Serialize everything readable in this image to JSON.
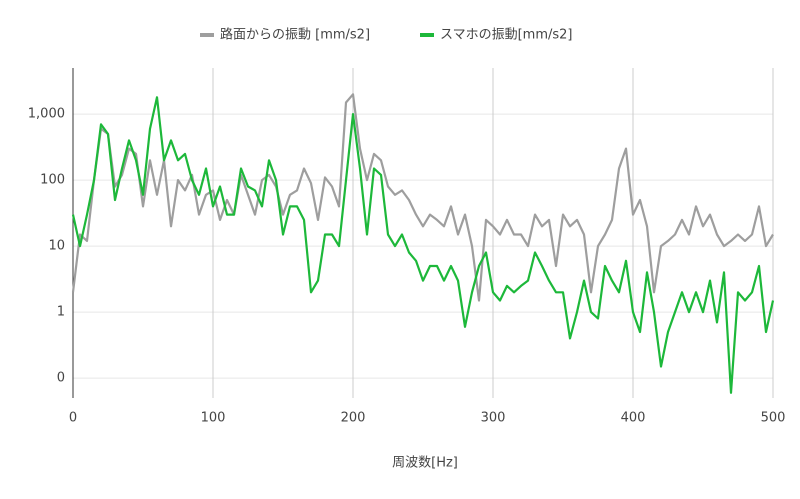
{
  "chart_data": {
    "type": "line",
    "xlabel": "周波数[Hz]",
    "x": [
      0,
      5,
      10,
      15,
      20,
      25,
      30,
      35,
      40,
      45,
      50,
      55,
      60,
      65,
      70,
      75,
      80,
      85,
      90,
      95,
      100,
      105,
      110,
      115,
      120,
      125,
      130,
      135,
      140,
      145,
      150,
      155,
      160,
      165,
      170,
      175,
      180,
      185,
      190,
      195,
      200,
      205,
      210,
      215,
      220,
      225,
      230,
      235,
      240,
      245,
      250,
      255,
      260,
      265,
      270,
      275,
      280,
      285,
      290,
      295,
      300,
      305,
      310,
      315,
      320,
      325,
      330,
      335,
      340,
      345,
      350,
      355,
      360,
      365,
      370,
      375,
      380,
      385,
      390,
      395,
      400,
      405,
      410,
      415,
      420,
      425,
      430,
      435,
      440,
      445,
      450,
      455,
      460,
      465,
      470,
      475,
      480,
      485,
      490,
      495,
      500
    ],
    "series": [
      {
        "name": "路面からの振動 [mm/s2]",
        "color": "#9e9e9e",
        "values": [
          2,
          15,
          12,
          100,
          600,
          500,
          80,
          120,
          300,
          250,
          40,
          200,
          60,
          200,
          20,
          100,
          70,
          120,
          30,
          60,
          70,
          25,
          50,
          30,
          120,
          60,
          30,
          100,
          120,
          80,
          30,
          60,
          70,
          150,
          90,
          25,
          110,
          80,
          40,
          1500,
          2000,
          300,
          100,
          250,
          200,
          80,
          60,
          70,
          50,
          30,
          20,
          30,
          25,
          20,
          40,
          15,
          30,
          10,
          1.5,
          25,
          20,
          15,
          25,
          15,
          15,
          10,
          30,
          20,
          25,
          5,
          30,
          20,
          25,
          15,
          2,
          10,
          15,
          25,
          150,
          300,
          30,
          50,
          20,
          2,
          10,
          12,
          15,
          25,
          15,
          40,
          20,
          30,
          15,
          10,
          12,
          15,
          12,
          15,
          40,
          10,
          15
        ]
      },
      {
        "name": "スマホの振動[mm/s2]",
        "color": "#1db83a",
        "values": [
          30,
          10,
          30,
          100,
          700,
          500,
          50,
          150,
          400,
          200,
          60,
          600,
          1800,
          200,
          400,
          200,
          250,
          100,
          60,
          150,
          40,
          80,
          30,
          30,
          150,
          80,
          70,
          40,
          200,
          100,
          15,
          40,
          40,
          25,
          2,
          3,
          15,
          15,
          10,
          100,
          1000,
          150,
          15,
          150,
          120,
          15,
          10,
          15,
          8,
          6,
          3,
          5,
          5,
          3,
          5,
          3,
          0.6,
          2,
          5,
          8,
          2,
          1.5,
          2.5,
          2,
          2.5,
          3,
          8,
          5,
          3,
          2,
          2,
          0.4,
          1,
          3,
          1,
          0.8,
          5,
          3,
          2,
          6,
          1,
          0.5,
          4,
          1,
          0.15,
          0.5,
          1,
          2,
          1,
          2,
          1,
          3,
          0.7,
          4,
          0.06,
          2,
          1.5,
          2,
          5,
          0.5,
          1.5
        ]
      }
    ],
    "xlim": [
      0,
      500
    ],
    "xticks": [
      0,
      100,
      200,
      300,
      400,
      500
    ],
    "ylim": [
      0.05,
      5000
    ],
    "log_y": true,
    "yticks": [
      {
        "value": 0.1,
        "label": "0"
      },
      1,
      10,
      100,
      {
        "value": 1000,
        "label": "1,000"
      }
    ],
    "grid": true,
    "legend": "top"
  }
}
